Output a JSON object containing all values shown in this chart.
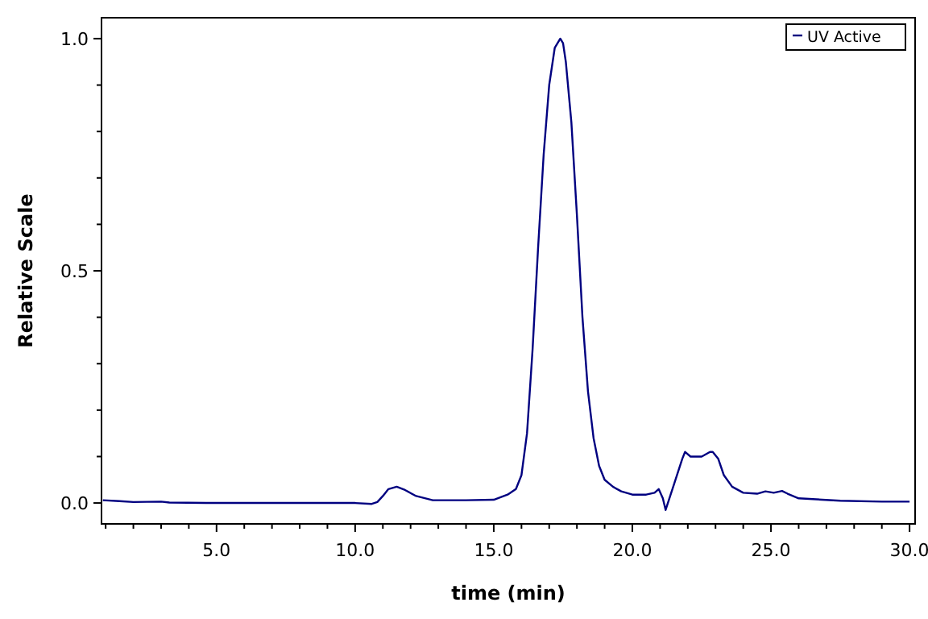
{
  "chart_data": {
    "type": "line",
    "xlabel": "time (min)",
    "ylabel": "Relative Scale",
    "xlim": [
      0.85,
      30.2
    ],
    "ylim": [
      -0.045,
      1.045
    ],
    "xticks": [
      {
        "value": 1,
        "label": null
      },
      {
        "value": 2,
        "label": null
      },
      {
        "value": 3,
        "label": null
      },
      {
        "value": 4,
        "label": null
      },
      {
        "value": 5,
        "label": "5.0"
      },
      {
        "value": 6,
        "label": null
      },
      {
        "value": 7,
        "label": null
      },
      {
        "value": 8,
        "label": null
      },
      {
        "value": 9,
        "label": null
      },
      {
        "value": 10,
        "label": "10.0"
      },
      {
        "value": 11,
        "label": null
      },
      {
        "value": 12,
        "label": null
      },
      {
        "value": 13,
        "label": null
      },
      {
        "value": 14,
        "label": null
      },
      {
        "value": 15,
        "label": "15.0"
      },
      {
        "value": 16,
        "label": null
      },
      {
        "value": 17,
        "label": null
      },
      {
        "value": 18,
        "label": null
      },
      {
        "value": 19,
        "label": null
      },
      {
        "value": 20,
        "label": "20.0"
      },
      {
        "value": 21,
        "label": null
      },
      {
        "value": 22,
        "label": null
      },
      {
        "value": 23,
        "label": null
      },
      {
        "value": 24,
        "label": null
      },
      {
        "value": 25,
        "label": "25.0"
      },
      {
        "value": 26,
        "label": null
      },
      {
        "value": 27,
        "label": null
      },
      {
        "value": 28,
        "label": null
      },
      {
        "value": 29,
        "label": null
      },
      {
        "value": 30,
        "label": "30.0"
      }
    ],
    "yticks": [
      {
        "value": 0,
        "label": "0.0"
      },
      {
        "value": 0.1,
        "label": null
      },
      {
        "value": 0.2,
        "label": null
      },
      {
        "value": 0.3,
        "label": null
      },
      {
        "value": 0.4,
        "label": null
      },
      {
        "value": 0.5,
        "label": "0.5"
      },
      {
        "value": 0.6,
        "label": null
      },
      {
        "value": 0.7,
        "label": null
      },
      {
        "value": 0.8,
        "label": null
      },
      {
        "value": 0.9,
        "label": null
      },
      {
        "value": 1.0,
        "label": "1.0"
      }
    ],
    "legend": "top right",
    "marker": "none",
    "line_style": "solid",
    "grid": false,
    "series": [
      {
        "name": "UV Active",
        "color": "#000080",
        "x": [
          0.9,
          1.5,
          2,
          3,
          3.3,
          5,
          8,
          10,
          10.6,
          10.8,
          11,
          11.2,
          11.5,
          11.8,
          12.2,
          12.8,
          14,
          15,
          15.5,
          15.8,
          16,
          16.2,
          16.4,
          16.6,
          16.8,
          17,
          17.2,
          17.4,
          17.5,
          17.6,
          17.8,
          18,
          18.2,
          18.4,
          18.6,
          18.8,
          19,
          19.3,
          19.6,
          20,
          20.5,
          20.8,
          20.95,
          21.1,
          21.2,
          21.5,
          21.8,
          21.9,
          22.1,
          22.5,
          22.8,
          22.9,
          23.1,
          23.3,
          23.6,
          24,
          24.5,
          24.8,
          25.1,
          25.4,
          25.6,
          26,
          27.5,
          29,
          30
        ],
        "values": [
          0.006,
          0.004,
          0.002,
          0.003,
          0.001,
          0.0,
          0.0,
          0.0,
          -0.002,
          0.002,
          0.015,
          0.03,
          0.035,
          0.028,
          0.015,
          0.006,
          0.006,
          0.007,
          0.018,
          0.03,
          0.06,
          0.15,
          0.33,
          0.55,
          0.75,
          0.9,
          0.98,
          1.0,
          0.99,
          0.95,
          0.82,
          0.62,
          0.4,
          0.24,
          0.14,
          0.08,
          0.05,
          0.035,
          0.025,
          0.018,
          0.018,
          0.022,
          0.03,
          0.01,
          -0.015,
          0.04,
          0.095,
          0.11,
          0.1,
          0.1,
          0.11,
          0.11,
          0.095,
          0.06,
          0.035,
          0.022,
          0.02,
          0.025,
          0.022,
          0.026,
          0.02,
          0.01,
          0.005,
          0.003,
          0.003
        ]
      }
    ]
  }
}
